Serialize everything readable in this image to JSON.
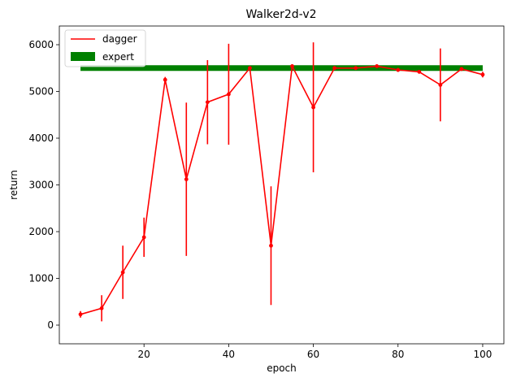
{
  "chart_data": {
    "type": "line",
    "title": "Walker2d-v2",
    "xlabel": "epoch",
    "ylabel": "return",
    "xlim": [
      0,
      105
    ],
    "ylim": [
      -400,
      6400
    ],
    "xticks": [
      20,
      40,
      60,
      80,
      100
    ],
    "yticks": [
      0,
      1000,
      2000,
      3000,
      4000,
      5000,
      6000
    ],
    "grid": false,
    "legend_placement": "upper-left",
    "series": [
      {
        "name": "dagger",
        "color": "#ff0000",
        "x": [
          5,
          10,
          15,
          20,
          25,
          30,
          35,
          40,
          45,
          50,
          55,
          60,
          65,
          70,
          75,
          80,
          85,
          90,
          95,
          100
        ],
        "y": [
          230,
          360,
          1130,
          1880,
          5250,
          3120,
          4770,
          4940,
          5500,
          1700,
          5540,
          4660,
          5500,
          5500,
          5540,
          5460,
          5420,
          5140,
          5480,
          5360
        ],
        "err": [
          70,
          280,
          570,
          420,
          60,
          1640,
          900,
          1080,
          40,
          1270,
          40,
          1390,
          40,
          40,
          30,
          40,
          40,
          780,
          40,
          60
        ]
      },
      {
        "name": "expert",
        "color": "#008000",
        "x": [
          5,
          100
        ],
        "y": [
          5500,
          5500
        ]
      }
    ]
  }
}
